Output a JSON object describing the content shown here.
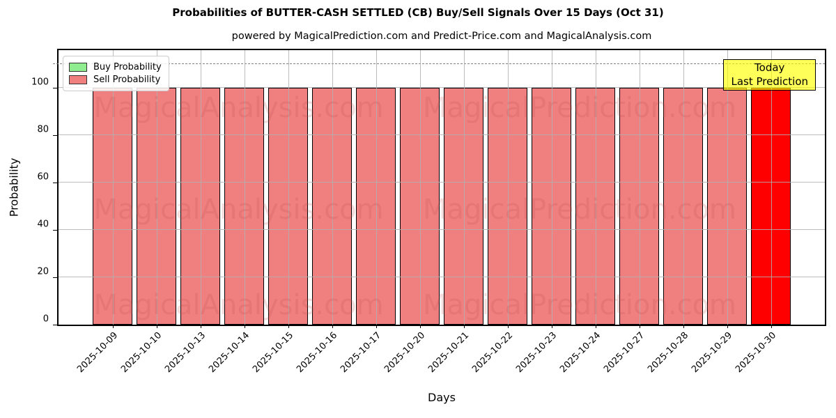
{
  "header": {
    "title": "Probabilities of BUTTER-CASH SETTLED (CB) Buy/Sell Signals Over 15 Days (Oct 31)",
    "subtitle": "powered by MagicalPrediction.com and Predict-Price.com and MagicalAnalysis.com"
  },
  "axis": {
    "xlabel": "Days",
    "ylabel": "Probability"
  },
  "legend": {
    "items": [
      {
        "label": "Buy Probability",
        "color": "#90EE90"
      },
      {
        "label": "Sell Probability",
        "color": "#F08080"
      }
    ]
  },
  "annotation": {
    "line1": "Today",
    "line2": "Last Prediction",
    "bg": "#FFFF00"
  },
  "watermarks": {
    "left": "MagicalAnalysis.com",
    "right": "MagicalPrediction.com"
  },
  "chart_data": {
    "type": "bar",
    "title": "Probabilities of BUTTER-CASH SETTLED (CB) Buy/Sell Signals Over 15 Days (Oct 31)",
    "xlabel": "Days",
    "ylabel": "Probability",
    "ylim": [
      0,
      116
    ],
    "yticks": [
      0,
      20,
      40,
      60,
      80,
      100
    ],
    "dashed_guide_y": 110,
    "grid": true,
    "legend_position": "upper left",
    "categories": [
      "2025-10-09",
      "2025-10-10",
      "2025-10-13",
      "2025-10-14",
      "2025-10-15",
      "2025-10-16",
      "2025-10-17",
      "2025-10-20",
      "2025-10-21",
      "2025-10-22",
      "2025-10-23",
      "2025-10-24",
      "2025-10-27",
      "2025-10-28",
      "2025-10-29",
      "2025-10-30"
    ],
    "series": [
      {
        "name": "Buy Probability",
        "color": "#90EE90",
        "values": [
          0,
          0,
          0,
          0,
          0,
          0,
          0,
          0,
          0,
          0,
          0,
          0,
          0,
          0,
          0,
          0
        ]
      },
      {
        "name": "Sell Probability",
        "color": "#F08080",
        "values": [
          100,
          100,
          100,
          100,
          100,
          100,
          100,
          100,
          100,
          100,
          100,
          100,
          100,
          100,
          100,
          100
        ]
      }
    ],
    "highlight": {
      "category": "2025-10-30",
      "color": "#FF0000",
      "label": "Today / Last Prediction"
    },
    "bar_edge_color": "#000000"
  }
}
